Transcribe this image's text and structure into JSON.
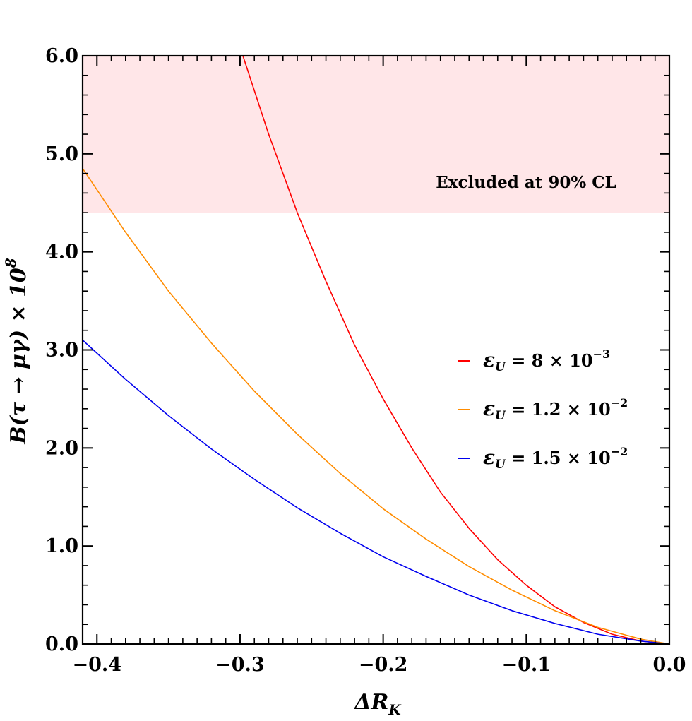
{
  "chart_data": {
    "type": "line",
    "title": "",
    "xlabel": "ΔR_K",
    "ylabel": "B(τ → μγ) × 10^8",
    "xlim": [
      -0.41,
      0.0
    ],
    "ylim": [
      0.0,
      6.0
    ],
    "x_ticks": [
      -0.4,
      -0.3,
      -0.2,
      -0.1,
      0.0
    ],
    "x_tick_labels": [
      "−0.4",
      "−0.3",
      "−0.2",
      "−0.1",
      "0.0"
    ],
    "y_ticks": [
      0.0,
      1.0,
      2.0,
      3.0,
      4.0,
      5.0,
      6.0
    ],
    "y_tick_labels": [
      "0.0",
      "1.0",
      "2.0",
      "3.0",
      "4.0",
      "5.0",
      "6.0"
    ],
    "grid": false,
    "excluded_region": {
      "ymin": 4.4,
      "ymax": 6.0,
      "label": "Excluded at 90% CL",
      "color": "#ffe6e8"
    },
    "series": [
      {
        "name": "ε_U = 8 × 10^−3",
        "color": "#ff0000",
        "x": [
          -0.298,
          -0.28,
          -0.26,
          -0.24,
          -0.22,
          -0.2,
          -0.18,
          -0.16,
          -0.14,
          -0.12,
          -0.1,
          -0.08,
          -0.06,
          -0.04,
          -0.02,
          0.0
        ],
        "y": [
          6.0,
          5.2,
          4.4,
          3.7,
          3.05,
          2.5,
          2.0,
          1.55,
          1.18,
          0.86,
          0.6,
          0.38,
          0.22,
          0.1,
          0.03,
          0.0
        ]
      },
      {
        "name": "ε_U = 1.2 × 10^−2",
        "color": "#ff8c00",
        "x": [
          -0.41,
          -0.38,
          -0.35,
          -0.32,
          -0.29,
          -0.26,
          -0.23,
          -0.2,
          -0.17,
          -0.14,
          -0.11,
          -0.08,
          -0.05,
          -0.02,
          0.0
        ],
        "y": [
          4.85,
          4.2,
          3.6,
          3.07,
          2.58,
          2.14,
          1.74,
          1.38,
          1.07,
          0.79,
          0.55,
          0.34,
          0.17,
          0.05,
          0.0
        ]
      },
      {
        "name": "ε_U = 1.5 × 10^−2",
        "color": "#0000ee",
        "x": [
          -0.41,
          -0.38,
          -0.35,
          -0.32,
          -0.29,
          -0.26,
          -0.23,
          -0.2,
          -0.17,
          -0.14,
          -0.11,
          -0.08,
          -0.05,
          -0.02,
          0.0
        ],
        "y": [
          3.1,
          2.7,
          2.33,
          1.99,
          1.68,
          1.39,
          1.13,
          0.89,
          0.69,
          0.5,
          0.34,
          0.21,
          0.1,
          0.03,
          0.0
        ]
      }
    ],
    "legend": {
      "placement": "right",
      "entries": [
        {
          "prefix": "ε",
          "sub": "U",
          "mid": " = 8 × 10",
          "exp": "−3"
        },
        {
          "prefix": "ε",
          "sub": "U",
          "mid": " = 1.2 × 10",
          "exp": "−2"
        },
        {
          "prefix": "ε",
          "sub": "U",
          "mid": " = 1.5 × 10",
          "exp": "−2"
        }
      ]
    },
    "axis_title_parts": {
      "x_main": "ΔR",
      "x_sub": "K",
      "y_main": "B(τ → μγ) × 10",
      "y_exp": "8"
    }
  }
}
